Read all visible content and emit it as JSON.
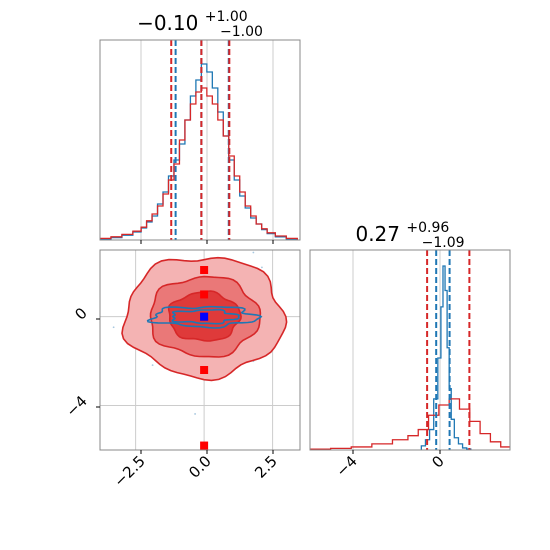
{
  "chart_data": [
    {
      "type": "histogram",
      "panel": "top-left",
      "title": {
        "value": "−0.10",
        "sup": "+1.00",
        "sub": "−1.00"
      },
      "xlim": [
        -3.8,
        3.5
      ],
      "grid": true,
      "series": [
        {
          "name": "",
          "color": "#1f77b4",
          "x": [
            -3.6,
            -3.2,
            -2.8,
            -2.4,
            -2.2,
            -2.0,
            -1.8,
            -1.6,
            -1.4,
            -1.2,
            -1.0,
            -0.8,
            -0.6,
            -0.4,
            -0.2,
            0.0,
            0.2,
            0.4,
            0.6,
            0.8,
            1.0,
            1.2,
            1.4,
            1.6,
            1.8,
            2.0,
            2.2,
            2.4,
            2.8,
            3.2
          ],
          "y": [
            0.003,
            0.006,
            0.012,
            0.02,
            0.03,
            0.045,
            0.06,
            0.09,
            0.12,
            0.16,
            0.2,
            0.24,
            0.3,
            0.36,
            0.4,
            0.44,
            0.42,
            0.38,
            0.32,
            0.26,
            0.2,
            0.15,
            0.11,
            0.08,
            0.055,
            0.04,
            0.026,
            0.016,
            0.008,
            0.003
          ]
        },
        {
          "name": "",
          "color": "#d62728",
          "x": [
            -3.6,
            -3.2,
            -2.8,
            -2.4,
            -2.2,
            -2.0,
            -1.8,
            -1.6,
            -1.4,
            -1.2,
            -1.0,
            -0.8,
            -0.6,
            -0.4,
            -0.2,
            0.0,
            0.2,
            0.4,
            0.6,
            0.8,
            1.0,
            1.2,
            1.4,
            1.6,
            1.8,
            2.0,
            2.2,
            2.4,
            2.8,
            3.2
          ],
          "y": [
            0.004,
            0.008,
            0.014,
            0.022,
            0.032,
            0.048,
            0.065,
            0.085,
            0.115,
            0.15,
            0.19,
            0.25,
            0.3,
            0.34,
            0.37,
            0.38,
            0.36,
            0.34,
            0.3,
            0.26,
            0.21,
            0.16,
            0.12,
            0.085,
            0.06,
            0.04,
            0.028,
            0.018,
            0.01,
            0.004
          ]
        }
      ],
      "quantile_lines": [
        {
          "color": "#1f77b4",
          "x": [
            -1.04,
            -0.1,
            0.9
          ]
        },
        {
          "color": "#d62728",
          "x": [
            -1.2,
            -0.1,
            0.92
          ]
        }
      ]
    },
    {
      "type": "scatter",
      "panel": "bottom-left",
      "xlim": [
        -3.8,
        3.5
      ],
      "ylim": [
        -6.0,
        3.0
      ],
      "xticks": [
        "−2.5",
        "0.0",
        "2.5"
      ],
      "yticks": [
        "−4",
        "0"
      ],
      "grid": true,
      "contours": [
        {
          "color": "#d62728",
          "fill": "#f2a7a7",
          "levels": [
            [
              2.9,
              2.7
            ],
            [
              2.0,
              1.8
            ],
            [
              1.3,
              1.1
            ]
          ]
        },
        {
          "color": "#1f77b4",
          "levels": [
            [
              1.9,
              0.45
            ],
            [
              1.2,
              0.3
            ]
          ]
        }
      ],
      "markers": [
        {
          "color": "#ff0000",
          "x": [
            0,
            0,
            0,
            0,
            0
          ],
          "y": [
            2.1,
            1.0,
            -2.4,
            -5.8,
            0
          ]
        },
        {
          "color": "#0000ff",
          "x": [
            0
          ],
          "y": [
            0
          ]
        }
      ]
    },
    {
      "type": "histogram",
      "panel": "bottom-right",
      "title": {
        "value": "0.27",
        "sup": "+0.96",
        "sub": "−1.09"
      },
      "xlim": [
        -6.5,
        3.2
      ],
      "xticks": [
        "−4",
        "0"
      ],
      "grid": true,
      "series": [
        {
          "name": "",
          "color": "#1f77b4",
          "x": [
            -1.0,
            -0.8,
            -0.6,
            -0.4,
            -0.2,
            -0.1,
            0.0,
            0.1,
            0.2,
            0.3,
            0.4,
            0.6,
            0.8,
            1.0,
            1.2
          ],
          "y": [
            0.02,
            0.05,
            0.1,
            0.25,
            0.45,
            0.7,
            0.9,
            0.78,
            0.5,
            0.3,
            0.15,
            0.06,
            0.03,
            0.01,
            0.005
          ]
        },
        {
          "name": "",
          "color": "#d62728",
          "x": [
            -6.0,
            -5.0,
            -4.0,
            -3.0,
            -2.0,
            -1.5,
            -1.0,
            -0.5,
            0.0,
            0.5,
            1.0,
            1.5,
            2.0,
            2.5,
            3.0
          ],
          "y": [
            0.004,
            0.008,
            0.015,
            0.03,
            0.05,
            0.07,
            0.1,
            0.17,
            0.22,
            0.25,
            0.2,
            0.14,
            0.08,
            0.04,
            0.015
          ]
        }
      ],
      "quantile_lines": [
        {
          "color": "#1f77b4",
          "x": [
            -0.38,
            0.27
          ]
        },
        {
          "color": "#d62728",
          "x": [
            -0.82,
            1.23
          ]
        }
      ]
    }
  ]
}
